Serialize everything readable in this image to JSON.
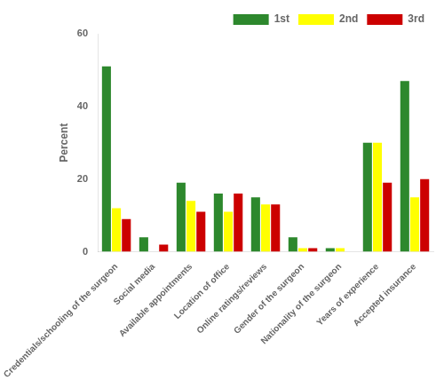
{
  "chart_data": {
    "type": "bar",
    "categories": [
      "Credentials/schooling of the surgeon",
      "Social media",
      "Available appointments",
      "Location of office",
      "Online ratings/reviews",
      "Gender of the surgeon",
      "Nationality of the surgeon",
      "Years of experience",
      "Accepted insurance"
    ],
    "series": [
      {
        "name": "1st",
        "color": "#2d882d",
        "values": [
          51,
          4,
          19,
          16,
          15,
          4,
          1,
          30,
          47
        ]
      },
      {
        "name": "2nd",
        "color": "#ffff00",
        "values": [
          12,
          0,
          14,
          11,
          13,
          1,
          1,
          30,
          15
        ]
      },
      {
        "name": "3rd",
        "color": "#cc0000",
        "values": [
          9,
          2,
          11,
          16,
          13,
          1,
          0,
          19,
          20
        ]
      }
    ],
    "ylabel": "Percent",
    "ylim": [
      0,
      60
    ],
    "yticks": [
      0,
      20,
      40,
      60
    ],
    "grid": false,
    "legend": "upper right"
  }
}
